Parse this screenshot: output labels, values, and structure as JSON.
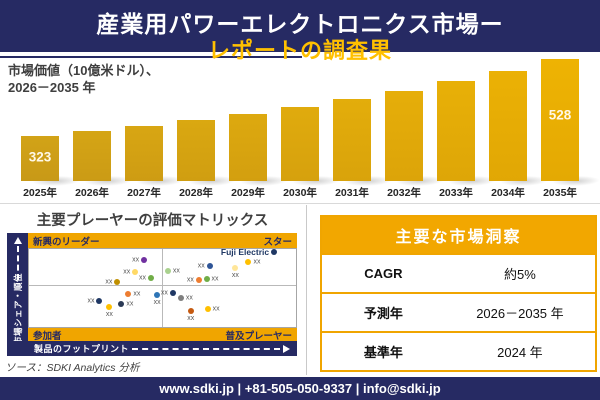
{
  "colors": {
    "navy": "#262A63",
    "gold_band": "#F0A500",
    "title_yellow": "#FFC000",
    "bar_color_start": "#D2A317",
    "bar_color_end": "#EEB303",
    "divider": "#D9D9D9"
  },
  "header": {
    "title_line1": "産業用パワーエレクトロニクス市場ー",
    "title_line2": "レポートの調査果"
  },
  "chart_data": [
    {
      "type": "bar",
      "title": "市場価値（10億米ドル）、2026－2035年",
      "title_line1": "市場価値（10億米ドル）、",
      "title_line2": "2026－2035 年",
      "categories": [
        "2025年",
        "2026年",
        "2027年",
        "2028年",
        "2029年",
        "2030年",
        "2031年",
        "2032年",
        "2033年",
        "2034年",
        "2035年"
      ],
      "values": [
        323,
        339,
        356,
        374,
        393,
        412,
        433,
        455,
        477,
        501,
        528
      ],
      "labeled_values": {
        "2025年": 323,
        "2035年": 528
      },
      "ylabel": "市場価値（10億米ドル）",
      "xlabel": "",
      "legend": "none",
      "grid": false
    },
    {
      "type": "scatter",
      "title": "主要プレーヤーの評価マトリックス",
      "xlabel": "製品のフットプリント",
      "ylabel": "市場シェア・順位",
      "quadrants": {
        "top_left": "新興のリーダー",
        "top_right": "スター",
        "bottom_left": "参加者",
        "bottom_right": "普及プレーヤー"
      },
      "points": [
        {
          "x": 43.1,
          "y": 13.8,
          "color": "#7030A0",
          "label": "xx",
          "side": "left"
        },
        {
          "x": 39.8,
          "y": 30.0,
          "color": "#FFD966",
          "label": "xx",
          "side": "left"
        },
        {
          "x": 33.1,
          "y": 42.5,
          "color": "#BF8F00",
          "label": "xx",
          "side": "left"
        },
        {
          "x": 45.7,
          "y": 37.5,
          "color": "#70AD47",
          "label": "xx",
          "side": "left"
        },
        {
          "x": 37.2,
          "y": 57.5,
          "color": "#ED7D31",
          "label": "xx",
          "side": "right"
        },
        {
          "x": 48.0,
          "y": 58.8,
          "color": "#2E75B6",
          "label": "xx",
          "side": "below"
        },
        {
          "x": 26.4,
          "y": 66.3,
          "color": "#1F3864",
          "label": "xx",
          "side": "left"
        },
        {
          "x": 34.6,
          "y": 70.0,
          "color": "#2B3A55",
          "label": "xx",
          "side": "right"
        },
        {
          "x": 30.1,
          "y": 73.8,
          "color": "#FFC000",
          "label": "xx",
          "side": "below"
        },
        {
          "x": 91.8,
          "y": 3.8,
          "color": "#1F3864",
          "label": "Fuji Electric",
          "side": "left",
          "emphasis": true
        },
        {
          "x": 67.7,
          "y": 21.3,
          "color": "#2F5597",
          "label": "xx",
          "side": "left"
        },
        {
          "x": 82.2,
          "y": 16.3,
          "color": "#FFC000",
          "label": "xx",
          "side": "right"
        },
        {
          "x": 77.3,
          "y": 23.8,
          "color": "#FFE699",
          "label": "xx",
          "side": "below"
        },
        {
          "x": 52.0,
          "y": 28.8,
          "color": "#A9D18E",
          "label": "xx",
          "side": "right"
        },
        {
          "x": 63.6,
          "y": 40.0,
          "color": "#ED7D31",
          "label": "xx",
          "side": "left"
        },
        {
          "x": 66.5,
          "y": 38.8,
          "color": "#70AD47",
          "label": "xx",
          "side": "right"
        },
        {
          "x": 53.9,
          "y": 56.3,
          "color": "#1F3864",
          "label": "xx",
          "side": "left"
        },
        {
          "x": 56.9,
          "y": 62.5,
          "color": "#7F7F7F",
          "label": "xx",
          "side": "right"
        },
        {
          "x": 60.6,
          "y": 80.0,
          "color": "#C55A11",
          "label": "xx",
          "side": "below"
        },
        {
          "x": 66.9,
          "y": 77.5,
          "color": "#FFC000",
          "label": "xx",
          "side": "right"
        }
      ]
    }
  ],
  "matrix": {
    "source_note": "ソース：SDKI Analytics 分析"
  },
  "insights": {
    "title": "主要な市場洞察",
    "rows": [
      {
        "label": "CAGR",
        "value": "約5%"
      },
      {
        "label": "予測年",
        "value": "2026－2035 年"
      },
      {
        "label": "基準年",
        "value": "2024 年"
      }
    ]
  },
  "footer": {
    "text": "www.sdki.jp | +81-505-050-9337 | info@sdki.jp"
  }
}
